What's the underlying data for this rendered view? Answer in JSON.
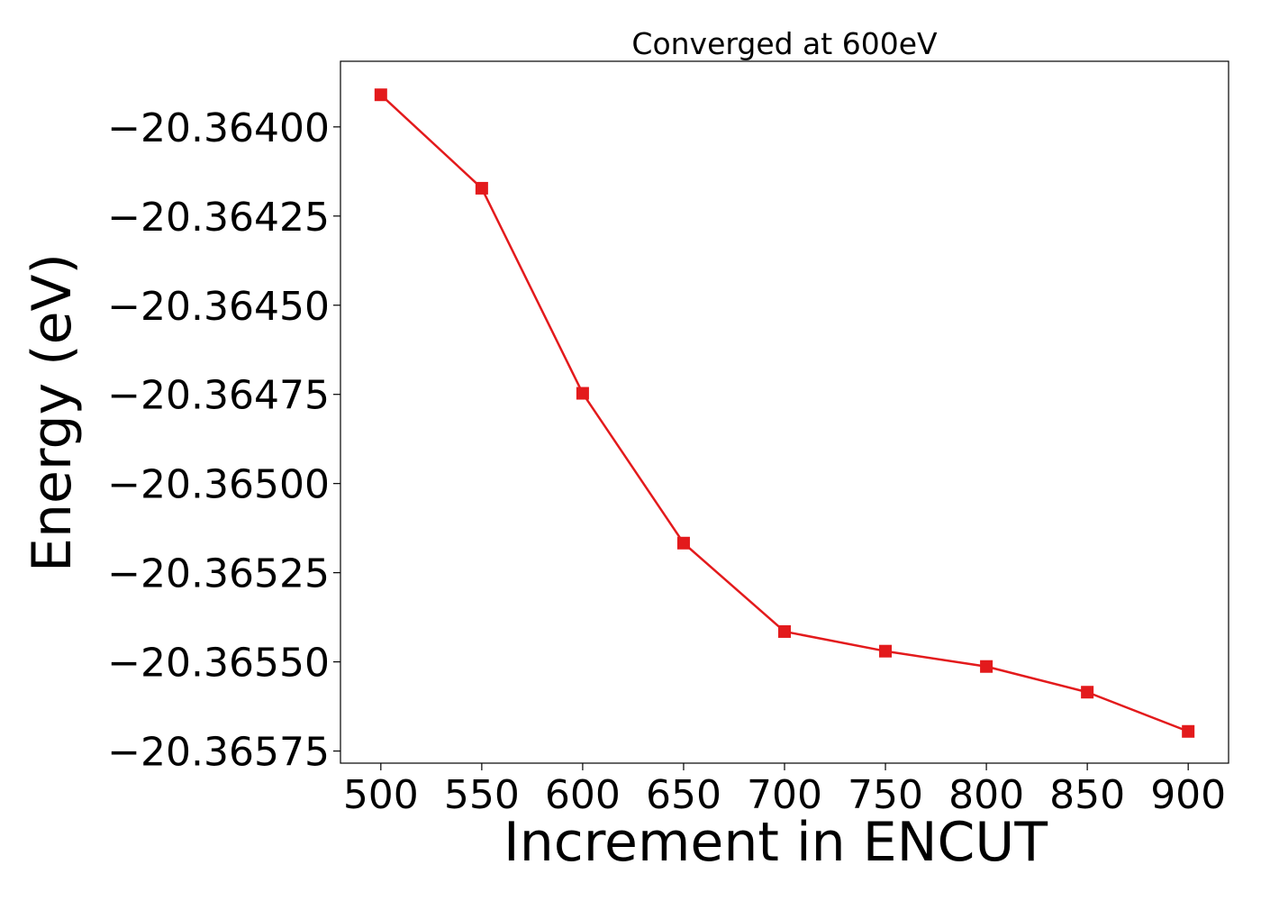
{
  "chart_data": {
    "type": "line",
    "title": "Converged at 600eV",
    "xlabel": "Increment in ENCUT",
    "ylabel": "Energy (eV)",
    "x": [
      500,
      550,
      600,
      650,
      700,
      750,
      800,
      850,
      900
    ],
    "xticks": [
      500,
      550,
      600,
      650,
      700,
      750,
      800,
      850,
      900
    ],
    "xtick_labels": [
      "500",
      "550",
      "600",
      "650",
      "700",
      "750",
      "800",
      "850",
      "900"
    ],
    "yticks": [
      -20.364,
      -20.36425,
      -20.3645,
      -20.36475,
      -20.365,
      -20.36525,
      -20.3655,
      -20.36575
    ],
    "ytick_labels": [
      "−20.36400",
      "−20.36425",
      "−20.36450",
      "−20.36475",
      "−20.36500",
      "−20.36525",
      "−20.36550",
      "−20.36575"
    ],
    "xlim": [
      480,
      920
    ],
    "ylim": [
      -20.365784,
      -20.363816
    ],
    "grid": false,
    "series": [
      {
        "color": "#e31a1c",
        "marker": "square",
        "values": [
          -20.36391,
          -20.364172,
          -20.364747,
          -20.365167,
          -20.365415,
          -20.36547,
          -20.365513,
          -20.365585,
          -20.365695
        ]
      }
    ]
  }
}
